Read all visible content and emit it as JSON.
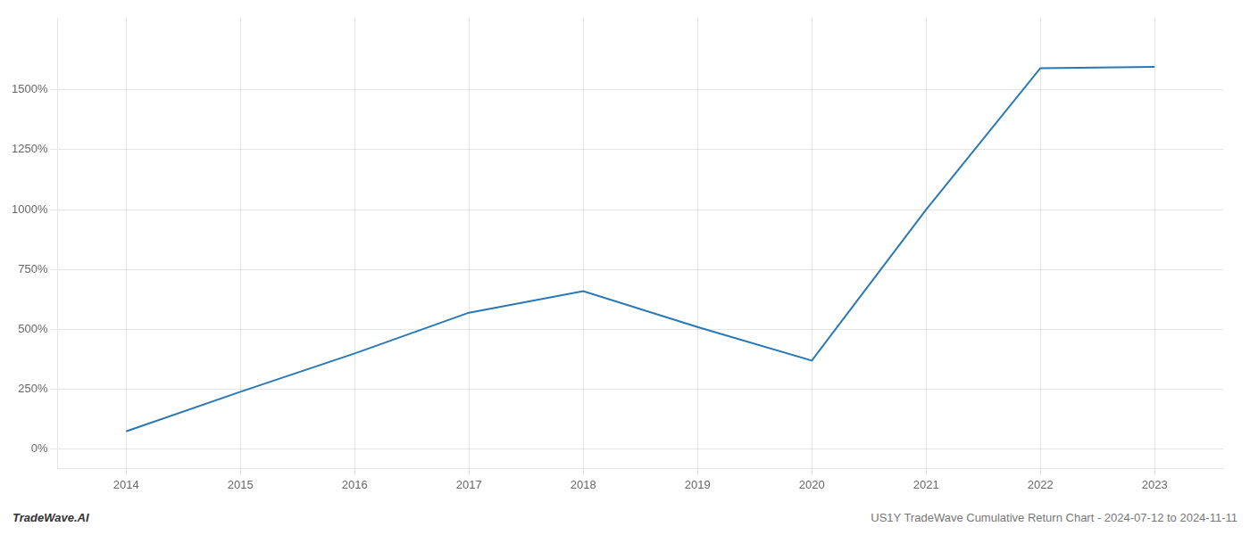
{
  "chart_data": {
    "type": "line",
    "x": [
      2014,
      2015,
      2016,
      2017,
      2018,
      2019,
      2020,
      2021,
      2022,
      2023
    ],
    "values": [
      75,
      240,
      400,
      570,
      660,
      510,
      370,
      1000,
      1590,
      1595
    ],
    "color": "#2878b5",
    "xlim": [
      2013.4,
      2023.6
    ],
    "xticks": [
      2014,
      2015,
      2016,
      2017,
      2018,
      2019,
      2020,
      2021,
      2022,
      2023
    ],
    "ylim": [
      -80,
      1800
    ],
    "yticks": [
      {
        "value": 0,
        "label": "0%"
      },
      {
        "value": 250,
        "label": "250%"
      },
      {
        "value": 500,
        "label": "500%"
      },
      {
        "value": 750,
        "label": "750%"
      },
      {
        "value": 1000,
        "label": "1000%"
      },
      {
        "value": 1250,
        "label": "1250%"
      },
      {
        "value": 1500,
        "label": "1500%"
      }
    ],
    "grid": true,
    "annotations": [
      "TradeWave.AI",
      "US1Y TradeWave Cumulative Return Chart - 2024-07-12 to 2024-11-11"
    ]
  }
}
